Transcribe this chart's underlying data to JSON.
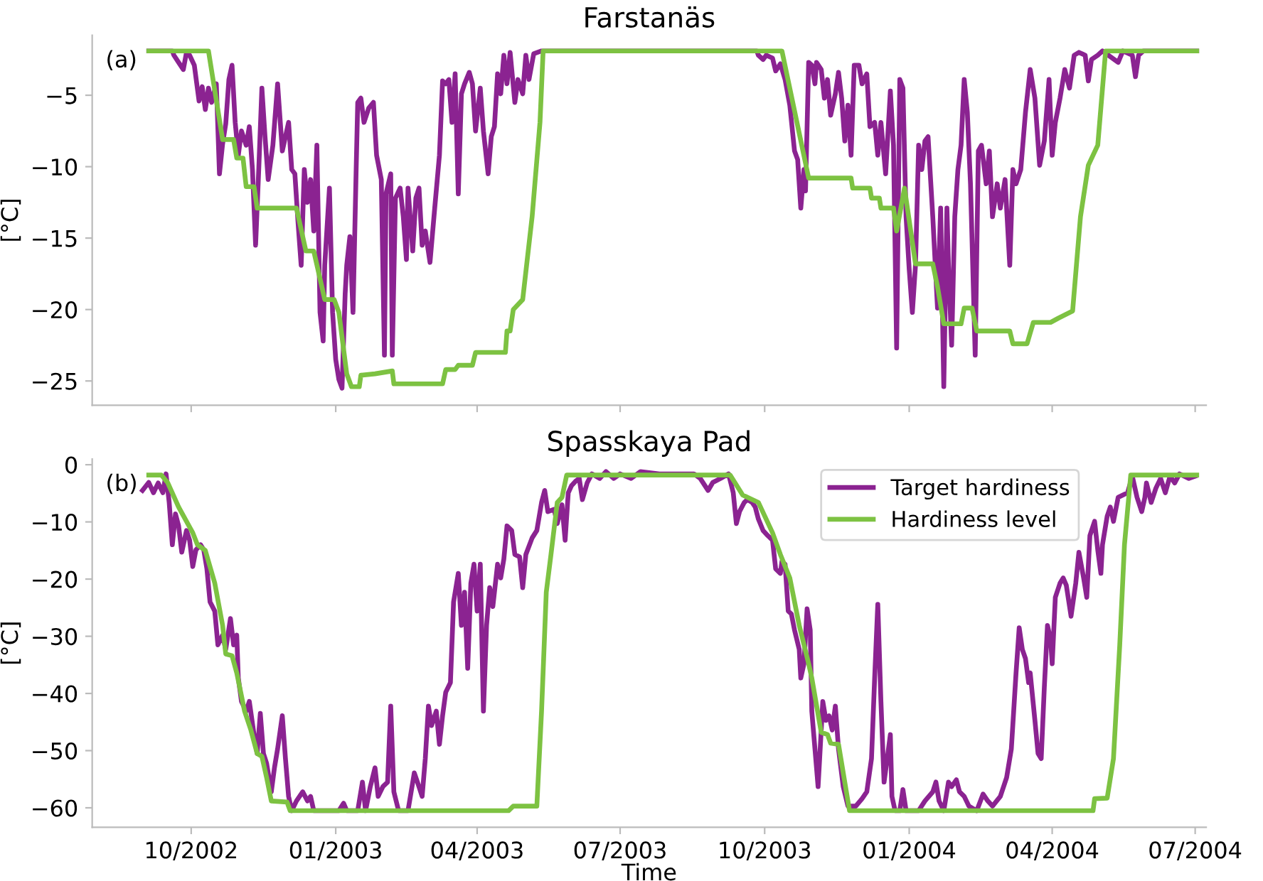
{
  "chart_data": [
    {
      "type": "line",
      "title": "Farstanäs",
      "ylabel": "[°C]",
      "annotations": [
        "(a)"
      ],
      "xlim": [
        "2002-07-30",
        "2004-07-08"
      ],
      "ylim": [
        -26.7,
        -0.8
      ],
      "yticks": [
        -5,
        -10,
        -15,
        -20,
        -25
      ],
      "xticks": [
        {
          "value": "2002-10-01",
          "label": null
        },
        {
          "value": "2003-01-01",
          "label": null
        },
        {
          "value": "2003-04-01",
          "label": null
        },
        {
          "value": "2003-07-01",
          "label": null
        },
        {
          "value": "2003-10-01",
          "label": null
        },
        {
          "value": "2004-01-01",
          "label": null
        },
        {
          "value": "2004-04-01",
          "label": null
        },
        {
          "value": "2004-07-01",
          "label": null
        }
      ],
      "tick_labels": "y",
      "grid": false,
      "legend": false,
      "marker": "none",
      "line_style": "solid",
      "series": [
        {
          "color": "#8b2391",
          "x": [
            "2002-09-04",
            "2002-09-19",
            "2002-09-20",
            "2002-09-23",
            "2002-09-26",
            "2002-09-28",
            "2002-09-30",
            "2002-10-03",
            "2002-10-06",
            "2002-10-08",
            "2002-10-10",
            "2002-10-12",
            "2002-10-14",
            "2002-10-17",
            "2002-10-19",
            "2002-10-21",
            "2002-10-23",
            "2002-10-25",
            "2002-10-27",
            "2002-10-29",
            "2002-10-31",
            "2002-11-02",
            "2002-11-05",
            "2002-11-07",
            "2002-11-09",
            "2002-11-11",
            "2002-11-13",
            "2002-11-15",
            "2002-11-17",
            "2002-11-19",
            "2002-11-22",
            "2002-11-25",
            "2002-11-28",
            "2002-12-02",
            "2002-12-04",
            "2002-12-06",
            "2002-12-08",
            "2002-12-10",
            "2002-12-12",
            "2002-12-14",
            "2002-12-16",
            "2002-12-18",
            "2002-12-20",
            "2002-12-22",
            "2002-12-24",
            "2002-12-25",
            "2002-12-28",
            "2002-12-30",
            "2003-01-01",
            "2003-01-03",
            "2003-01-05",
            "2003-01-07",
            "2003-01-08",
            "2003-01-10",
            "2003-01-12",
            "2003-01-14",
            "2003-01-15",
            "2003-01-17",
            "2003-01-19",
            "2003-01-22",
            "2003-01-25",
            "2003-01-27",
            "2003-01-30",
            "2003-02-01",
            "2003-02-02",
            "2003-02-05",
            "2003-02-06",
            "2003-02-08",
            "2003-02-11",
            "2003-02-13",
            "2003-02-15",
            "2003-02-16",
            "2003-02-19",
            "2003-02-21",
            "2003-02-23",
            "2003-02-25",
            "2003-02-27",
            "2003-03-02",
            "2003-03-05",
            "2003-03-08",
            "2003-03-10",
            "2003-03-12",
            "2003-03-14",
            "2003-03-16",
            "2003-03-18",
            "2003-03-20",
            "2003-03-22",
            "2003-03-24",
            "2003-03-27",
            "2003-03-29",
            "2003-03-31",
            "2003-04-03",
            "2003-04-05",
            "2003-04-08",
            "2003-04-10",
            "2003-04-12",
            "2003-04-14",
            "2003-04-16",
            "2003-04-18",
            "2003-04-20",
            "2003-04-22",
            "2003-04-25",
            "2003-04-27",
            "2003-04-30",
            "2003-05-02",
            "2003-05-04",
            "2003-05-07",
            "2003-05-12",
            "2003-08-30",
            "2003-09-26",
            "2003-09-27",
            "2003-09-30",
            "2003-10-02",
            "2003-10-06",
            "2003-10-08",
            "2003-10-11",
            "2003-10-14",
            "2003-10-17",
            "2003-10-20",
            "2003-10-22",
            "2003-10-24",
            "2003-10-26",
            "2003-10-27",
            "2003-10-29",
            "2003-10-31",
            "2003-11-02",
            "2003-11-03",
            "2003-11-06",
            "2003-11-08",
            "2003-11-10",
            "2003-11-12",
            "2003-11-15",
            "2003-11-17",
            "2003-11-19",
            "2003-11-21",
            "2003-11-23",
            "2003-11-25",
            "2003-11-27",
            "2003-11-30",
            "2003-12-02",
            "2003-12-05",
            "2003-12-07",
            "2003-12-10",
            "2003-12-12",
            "2003-12-14",
            "2003-12-17",
            "2003-12-20",
            "2003-12-22",
            "2003-12-24",
            "2003-12-26",
            "2003-12-28",
            "2003-12-30",
            "2004-01-01",
            "2004-01-03",
            "2004-01-05",
            "2004-01-07",
            "2004-01-09",
            "2004-01-11",
            "2004-01-13",
            "2004-01-16",
            "2004-01-19",
            "2004-01-21",
            "2004-01-23",
            "2004-01-25",
            "2004-01-26",
            "2004-01-28",
            "2004-01-30",
            "2004-02-01",
            "2004-02-03",
            "2004-02-05",
            "2004-02-07",
            "2004-02-09",
            "2004-02-12",
            "2004-02-14",
            "2004-02-16",
            "2004-02-19",
            "2004-02-21",
            "2004-02-23",
            "2004-02-26",
            "2004-02-28",
            "2004-03-02",
            "2004-03-05",
            "2004-03-07",
            "2004-03-09",
            "2004-03-12",
            "2004-03-15",
            "2004-03-18",
            "2004-03-21",
            "2004-03-24",
            "2004-03-27",
            "2004-03-30",
            "2004-04-01",
            "2004-04-03",
            "2004-04-06",
            "2004-04-09",
            "2004-04-12",
            "2004-04-15",
            "2004-04-18",
            "2004-04-22",
            "2004-04-24",
            "2004-04-26",
            "2004-04-30",
            "2004-05-03",
            "2004-05-13",
            "2004-05-16",
            "2004-05-22",
            "2004-05-24",
            "2004-05-26",
            "2004-05-29",
            "2004-07-02"
          ],
          "values": [
            -1.9,
            -1.9,
            -2.2,
            -2.7,
            -3.2,
            -2.0,
            -2.2,
            -2.9,
            -5.4,
            -4.4,
            -6.0,
            -4.5,
            -5.5,
            -4.2,
            -10.5,
            -8.4,
            -7.0,
            -3.9,
            -2.9,
            -6.9,
            -9.2,
            -7.5,
            -8.5,
            -7.2,
            -10.2,
            -15.5,
            -10.2,
            -4.5,
            -7.9,
            -10.9,
            -8.5,
            -4.2,
            -8.9,
            -6.9,
            -10.2,
            -10.5,
            -13.9,
            -16.9,
            -10.2,
            -12.5,
            -10.9,
            -14.5,
            -8.5,
            -20.2,
            -22.2,
            -16.9,
            -11.5,
            -20.2,
            -23.5,
            -24.9,
            -25.5,
            -18.9,
            -16.9,
            -14.9,
            -20.2,
            -10.2,
            -5.5,
            -5.2,
            -6.9,
            -5.9,
            -5.5,
            -9.2,
            -10.9,
            -23.2,
            -11.9,
            -10.5,
            -23.2,
            -12.2,
            -11.5,
            -13.5,
            -16.5,
            -11.5,
            -15.9,
            -12.2,
            -11.5,
            -15.5,
            -14.5,
            -16.7,
            -12.9,
            -9.2,
            -4.0,
            -4.2,
            -3.9,
            -6.9,
            -3.5,
            -11.9,
            -4.9,
            -4.2,
            -3.4,
            -4.2,
            -7.5,
            -4.5,
            -7.5,
            -10.5,
            -7.9,
            -7.2,
            -3.5,
            -4.9,
            -2.2,
            -4.2,
            -2.0,
            -5.5,
            -3.9,
            -4.9,
            -2.2,
            -3.9,
            -2.1,
            -1.9,
            -1.9,
            -1.9,
            -2.2,
            -2.5,
            -2.2,
            -2.4,
            -3.3,
            -2.8,
            -3.9,
            -5.7,
            -8.9,
            -9.5,
            -12.9,
            -10.2,
            -11.7,
            -2.7,
            -2.9,
            -4.2,
            -2.7,
            -3.2,
            -5.2,
            -3.9,
            -6.4,
            -4.9,
            -3.4,
            -5.2,
            -8.2,
            -5.7,
            -9.2,
            -2.9,
            -2.9,
            -4.2,
            -3.5,
            -7.2,
            -6.9,
            -9.2,
            -6.9,
            -10.5,
            -4.7,
            -8.5,
            -22.7,
            -3.9,
            -4.5,
            -13.5,
            -17.2,
            -20.2,
            -16.9,
            -8.5,
            -10.2,
            -8.2,
            -7.9,
            -13.5,
            -19.9,
            -12.9,
            -25.4,
            -12.9,
            -16.9,
            -22.5,
            -13.5,
            -10.2,
            -8.5,
            -3.9,
            -6.2,
            -11.2,
            -23.2,
            -8.9,
            -8.5,
            -11.2,
            -8.9,
            -13.5,
            -11.2,
            -12.9,
            -10.9,
            -16.9,
            -10.2,
            -11.2,
            -10.2,
            -6.2,
            -3.2,
            -5.2,
            -9.9,
            -8.2,
            -3.9,
            -9.2,
            -6.9,
            -5.2,
            -3.2,
            -4.5,
            -2.2,
            -2.0,
            -2.2,
            -4.0,
            -2.5,
            -2.2,
            -1.9,
            -2.7,
            -1.9,
            -2.2,
            -3.7,
            -2.2,
            -1.9,
            -1.9
          ]
        },
        {
          "color": "#7dc242",
          "x": [
            "2002-09-04",
            "2002-10-12",
            "2002-10-21",
            "2002-10-28",
            "2002-10-30",
            "2002-11-03",
            "2002-11-05",
            "2002-11-10",
            "2002-11-12",
            "2002-12-07",
            "2002-12-13",
            "2002-12-18",
            "2002-12-25",
            "2002-12-31",
            "2003-01-03",
            "2003-01-08",
            "2003-01-11",
            "2003-01-16",
            "2003-01-17",
            "2003-01-26",
            "2003-02-06",
            "2003-02-07",
            "2003-03-10",
            "2003-03-12",
            "2003-03-18",
            "2003-03-20",
            "2003-03-29",
            "2003-03-31",
            "2003-04-19",
            "2003-04-20",
            "2003-04-22",
            "2003-04-24",
            "2003-04-30",
            "2003-05-06",
            "2003-05-11",
            "2003-05-13",
            "2003-10-12",
            "2003-10-29",
            "2003-11-25",
            "2003-11-26",
            "2003-12-07",
            "2003-12-08",
            "2003-12-13",
            "2003-12-14",
            "2003-12-22",
            "2003-12-24",
            "2003-12-29",
            "2004-01-05",
            "2004-01-16",
            "2004-01-19",
            "2004-01-23",
            "2004-02-03",
            "2004-02-05",
            "2004-02-10",
            "2004-02-13",
            "2004-03-05",
            "2004-03-07",
            "2004-03-16",
            "2004-03-20",
            "2004-03-31",
            "2004-04-05",
            "2004-04-14",
            "2004-04-19",
            "2004-04-24",
            "2004-04-30",
            "2004-05-05",
            "2004-07-02"
          ],
          "values": [
            -1.9,
            -1.9,
            -8.1,
            -8.1,
            -9.4,
            -9.4,
            -11.4,
            -11.4,
            -12.9,
            -12.9,
            -15.9,
            -15.9,
            -19.3,
            -19.3,
            -20.2,
            -24.5,
            -25.4,
            -25.4,
            -24.6,
            -24.5,
            -24.3,
            -25.2,
            -25.2,
            -24.2,
            -24.2,
            -23.9,
            -23.9,
            -23.0,
            -23.0,
            -21.5,
            -21.5,
            -20.0,
            -19.3,
            -13.5,
            -6.9,
            -1.9,
            -1.9,
            -10.8,
            -10.8,
            -11.5,
            -11.5,
            -12.2,
            -12.2,
            -12.9,
            -12.9,
            -14.5,
            -11.5,
            -16.8,
            -16.8,
            -18.4,
            -21.0,
            -21.0,
            -19.9,
            -19.9,
            -21.5,
            -21.5,
            -22.4,
            -22.4,
            -20.9,
            -20.9,
            -20.6,
            -20.1,
            -13.5,
            -9.9,
            -8.5,
            -1.9,
            -1.9
          ]
        }
      ]
    },
    {
      "type": "line",
      "title": "Spasskaya Pad",
      "xlabel": "Time",
      "ylabel": "[°C]",
      "annotations": [
        "(b)"
      ],
      "xlim": [
        "2002-07-30",
        "2004-07-08"
      ],
      "ylim": [
        -63.4,
        1.0
      ],
      "yticks": [
        0,
        -10,
        -20,
        -30,
        -40,
        -50,
        -60
      ],
      "xticks": [
        {
          "value": "2002-10-01",
          "label": "10/2002"
        },
        {
          "value": "2003-01-01",
          "label": "01/2003"
        },
        {
          "value": "2003-04-01",
          "label": "04/2003"
        },
        {
          "value": "2003-07-01",
          "label": "07/2003"
        },
        {
          "value": "2003-10-01",
          "label": "10/2003"
        },
        {
          "value": "2004-01-01",
          "label": "01/2004"
        },
        {
          "value": "2004-04-01",
          "label": "04/2004"
        },
        {
          "value": "2004-07-01",
          "label": "07/2004"
        }
      ],
      "grid": false,
      "legend": "top",
      "marker": "none",
      "line_style": "solid",
      "series": [
        {
          "name": "Target hardiness",
          "color": "#8b2391",
          "x": [
            "2002-08-31",
            "2002-09-04",
            "2002-09-07",
            "2002-09-10",
            "2002-09-13",
            "2002-09-15",
            "2002-09-17",
            "2002-09-19",
            "2002-09-21",
            "2002-09-23",
            "2002-09-25",
            "2002-09-28",
            "2002-09-30",
            "2002-10-02",
            "2002-10-04",
            "2002-10-07",
            "2002-10-09",
            "2002-10-11",
            "2002-10-13",
            "2002-10-16",
            "2002-10-18",
            "2002-10-21",
            "2002-10-23",
            "2002-10-26",
            "2002-10-28",
            "2002-10-30",
            "2002-10-31",
            "2002-11-02",
            "2002-11-05",
            "2002-11-07",
            "2002-11-10",
            "2002-11-12",
            "2002-11-14",
            "2002-11-16",
            "2002-11-18",
            "2002-11-21",
            "2002-11-23",
            "2002-11-25",
            "2002-11-28",
            "2002-11-30",
            "2002-12-02",
            "2002-12-04",
            "2002-12-07",
            "2002-12-11",
            "2002-12-14",
            "2002-12-16",
            "2002-12-18",
            "2003-01-03",
            "2003-01-06",
            "2003-01-08",
            "2003-01-15",
            "2003-01-18",
            "2003-01-20",
            "2003-01-23",
            "2003-01-26",
            "2003-01-28",
            "2003-01-31",
            "2003-02-03",
            "2003-02-05",
            "2003-02-07",
            "2003-02-10",
            "2003-02-16",
            "2003-02-20",
            "2003-02-22",
            "2003-02-25",
            "2003-02-27",
            "2003-03-01",
            "2003-03-03",
            "2003-03-06",
            "2003-03-08",
            "2003-03-10",
            "2003-03-12",
            "2003-03-15",
            "2003-03-17",
            "2003-03-20",
            "2003-03-22",
            "2003-03-24",
            "2003-03-26",
            "2003-03-28",
            "2003-03-30",
            "2003-04-01",
            "2003-04-03",
            "2003-04-05",
            "2003-04-07",
            "2003-04-09",
            "2003-04-11",
            "2003-04-14",
            "2003-04-16",
            "2003-04-18",
            "2003-04-20",
            "2003-04-23",
            "2003-04-25",
            "2003-04-28",
            "2003-04-30",
            "2003-05-02",
            "2003-05-06",
            "2003-05-09",
            "2003-05-12",
            "2003-05-14",
            "2003-05-16",
            "2003-05-20",
            "2003-05-22",
            "2003-05-25",
            "2003-05-27",
            "2003-05-29",
            "2003-05-31",
            "2003-06-03",
            "2003-06-05",
            "2003-06-07",
            "2003-06-10",
            "2003-06-13",
            "2003-06-18",
            "2003-06-22",
            "2003-06-27",
            "2003-07-01",
            "2003-07-08",
            "2003-07-14",
            "2003-07-26",
            "2003-08-17",
            "2003-08-21",
            "2003-08-26",
            "2003-08-29",
            "2003-09-03",
            "2003-09-08",
            "2003-09-11",
            "2003-09-13",
            "2003-09-15",
            "2003-09-18",
            "2003-09-20",
            "2003-09-23",
            "2003-09-25",
            "2003-09-27",
            "2003-09-30",
            "2003-10-03",
            "2003-10-06",
            "2003-10-08",
            "2003-10-11",
            "2003-10-12",
            "2003-10-14",
            "2003-10-16",
            "2003-10-18",
            "2003-10-20",
            "2003-10-23",
            "2003-10-24",
            "2003-10-26",
            "2003-10-28",
            "2003-10-30",
            "2003-10-31",
            "2003-11-02",
            "2003-11-04",
            "2003-11-05",
            "2003-11-07",
            "2003-11-09",
            "2003-11-11",
            "2003-11-13",
            "2003-11-15",
            "2003-11-17",
            "2003-11-20",
            "2003-11-23",
            "2003-11-28",
            "2003-12-02",
            "2003-12-05",
            "2003-12-08",
            "2003-12-10",
            "2003-12-12",
            "2003-12-14",
            "2003-12-16",
            "2003-12-18",
            "2003-12-20",
            "2003-12-21",
            "2003-12-23",
            "2003-12-26",
            "2003-12-28",
            "2003-12-30",
            "2004-01-07",
            "2004-01-11",
            "2004-01-16",
            "2004-01-18",
            "2004-01-20",
            "2004-01-23",
            "2004-01-26",
            "2004-01-28",
            "2004-01-31",
            "2004-02-02",
            "2004-02-05",
            "2004-02-08",
            "2004-02-13",
            "2004-02-17",
            "2004-02-20",
            "2004-02-23",
            "2004-02-28",
            "2004-03-03",
            "2004-03-06",
            "2004-03-09",
            "2004-03-11",
            "2004-03-13",
            "2004-03-15",
            "2004-03-17",
            "2004-03-18",
            "2004-03-21",
            "2004-03-23",
            "2004-03-25",
            "2004-03-27",
            "2004-03-29",
            "2004-03-31",
            "2004-04-01",
            "2004-04-03",
            "2004-04-06",
            "2004-04-08",
            "2004-04-10",
            "2004-04-13",
            "2004-04-16",
            "2004-04-18",
            "2004-04-21",
            "2004-04-23",
            "2004-04-25",
            "2004-04-28",
            "2004-04-30",
            "2004-05-02",
            "2004-05-03",
            "2004-05-06",
            "2004-05-08",
            "2004-05-10",
            "2004-05-13",
            "2004-05-19",
            "2004-05-22",
            "2004-05-25",
            "2004-05-28",
            "2004-05-30",
            "2004-05-31",
            "2004-06-03",
            "2004-06-06",
            "2004-06-09",
            "2004-06-12",
            "2004-06-15",
            "2004-06-18",
            "2004-06-21",
            "2004-06-27",
            "2004-07-01"
          ],
          "values": [
            -4.5,
            -3.1,
            -4.9,
            -3.2,
            -4.9,
            -1.6,
            -6.6,
            -14.0,
            -8.6,
            -10.7,
            -15.3,
            -11.5,
            -13.2,
            -17.8,
            -14.9,
            -14.0,
            -14.9,
            -18.2,
            -24.0,
            -25.6,
            -31.5,
            -29.8,
            -32.3,
            -26.9,
            -31.5,
            -29.8,
            -37.3,
            -41.4,
            -43.1,
            -41.4,
            -47.2,
            -50.5,
            -43.5,
            -50.5,
            -52.2,
            -57.2,
            -53.0,
            -49.7,
            -43.9,
            -51.4,
            -58.0,
            -60.5,
            -58.8,
            -57.2,
            -58.8,
            -58.0,
            -60.5,
            -60.5,
            -59.2,
            -60.5,
            -60.5,
            -55.5,
            -60.5,
            -56.3,
            -53.0,
            -58.0,
            -56.3,
            -55.5,
            -42.2,
            -57.2,
            -60.5,
            -60.5,
            -53.9,
            -55.5,
            -58.0,
            -51.4,
            -42.2,
            -45.6,
            -43.1,
            -48.9,
            -43.9,
            -39.8,
            -38.1,
            -24.0,
            -19.0,
            -28.1,
            -22.3,
            -35.6,
            -20.7,
            -17.4,
            -25.6,
            -17.4,
            -43.1,
            -28.1,
            -21.5,
            -24.8,
            -17.4,
            -19.8,
            -16.5,
            -10.7,
            -11.5,
            -15.7,
            -16.1,
            -21.5,
            -15.7,
            -12.8,
            -11.5,
            -6.6,
            -4.5,
            -8.2,
            -7.8,
            -10.3,
            -7.0,
            -13.2,
            -4.9,
            -3.7,
            -2.8,
            -2.4,
            -6.1,
            -3.2,
            -1.6,
            -2.4,
            -1.2,
            -2.4,
            -1.6,
            -2.4,
            -1.2,
            -1.6,
            -1.6,
            -2.4,
            -4.5,
            -3.1,
            -2.4,
            -1.6,
            -4.9,
            -10.3,
            -8.2,
            -6.6,
            -6.1,
            -6.6,
            -7.4,
            -9.5,
            -11.5,
            -12.4,
            -13.2,
            -18.2,
            -19.0,
            -16.9,
            -17.4,
            -25.6,
            -26.1,
            -28.9,
            -32.3,
            -37.3,
            -34.8,
            -25.2,
            -28.9,
            -43.1,
            -49.7,
            -56.3,
            -51.4,
            -41.4,
            -44.7,
            -43.9,
            -46.4,
            -42.2,
            -49.7,
            -56.3,
            -59.7,
            -59.7,
            -58.4,
            -57.2,
            -51.4,
            -37.3,
            -24.4,
            -41.4,
            -55.5,
            -51.4,
            -47.2,
            -58.0,
            -60.5,
            -60.5,
            -56.8,
            -60.5,
            -60.5,
            -58.8,
            -57.2,
            -55.5,
            -58.8,
            -60.5,
            -55.5,
            -56.3,
            -55.1,
            -57.2,
            -58.0,
            -59.7,
            -60.5,
            -57.6,
            -58.8,
            -59.7,
            -58.0,
            -54.7,
            -49.7,
            -36.4,
            -28.5,
            -32.3,
            -33.9,
            -38.1,
            -36.4,
            -44.7,
            -50.5,
            -51.4,
            -38.9,
            -28.1,
            -30.6,
            -34.8,
            -23.2,
            -20.7,
            -19.8,
            -21.1,
            -26.5,
            -20.7,
            -15.3,
            -19.8,
            -23.2,
            -12.4,
            -9.9,
            -14.9,
            -19.0,
            -14.0,
            -9.0,
            -7.4,
            -9.9,
            -5.7,
            -4.9,
            -2.0,
            -5.7,
            -8.2,
            -5.7,
            -3.2,
            -6.6,
            -4.1,
            -2.4,
            -4.9,
            -2.0,
            -3.2,
            -1.6,
            -2.4,
            -2.0
          ]
        },
        {
          "name": "Hardiness level",
          "color": "#7dc242",
          "x": [
            "2002-09-04",
            "2002-09-12",
            "2002-09-16",
            "2002-09-23",
            "2002-10-02",
            "2002-10-05",
            "2002-10-10",
            "2002-10-16",
            "2002-10-21",
            "2002-10-23",
            "2002-10-27",
            "2002-10-30",
            "2002-11-04",
            "2002-11-08",
            "2002-11-12",
            "2002-11-15",
            "2002-11-18",
            "2002-11-21",
            "2002-12-01",
            "2002-12-03",
            "2003-04-21",
            "2003-04-24",
            "2003-05-09",
            "2003-05-12",
            "2003-05-15",
            "2003-05-18",
            "2003-05-22",
            "2003-05-25",
            "2003-05-28",
            "2003-09-09",
            "2003-09-17",
            "2003-09-27",
            "2003-10-06",
            "2003-10-11",
            "2003-10-17",
            "2003-10-23",
            "2003-10-29",
            "2003-10-31",
            "2003-11-06",
            "2003-11-10",
            "2003-11-12",
            "2003-11-17",
            "2003-11-24",
            "2004-04-27",
            "2004-04-28",
            "2004-05-06",
            "2004-05-10",
            "2004-05-14",
            "2004-05-17",
            "2004-05-21",
            "2004-07-02"
          ],
          "values": [
            -1.8,
            -1.8,
            -3.1,
            -7.4,
            -11.9,
            -14.0,
            -15.0,
            -20.7,
            -28.1,
            -33.1,
            -33.4,
            -36.4,
            -43.1,
            -46.4,
            -50.5,
            -51.0,
            -54.7,
            -58.8,
            -59.0,
            -60.5,
            -60.5,
            -59.7,
            -59.7,
            -43.1,
            -22.3,
            -15.7,
            -6.6,
            -5.7,
            -1.8,
            -1.8,
            -5.3,
            -6.6,
            -11.9,
            -15.7,
            -19.8,
            -28.1,
            -34.8,
            -37.3,
            -46.8,
            -47.2,
            -48.7,
            -48.9,
            -60.5,
            -60.5,
            -58.4,
            -58.3,
            -51.4,
            -31.5,
            -14.0,
            -1.8,
            -1.8
          ]
        }
      ]
    }
  ]
}
